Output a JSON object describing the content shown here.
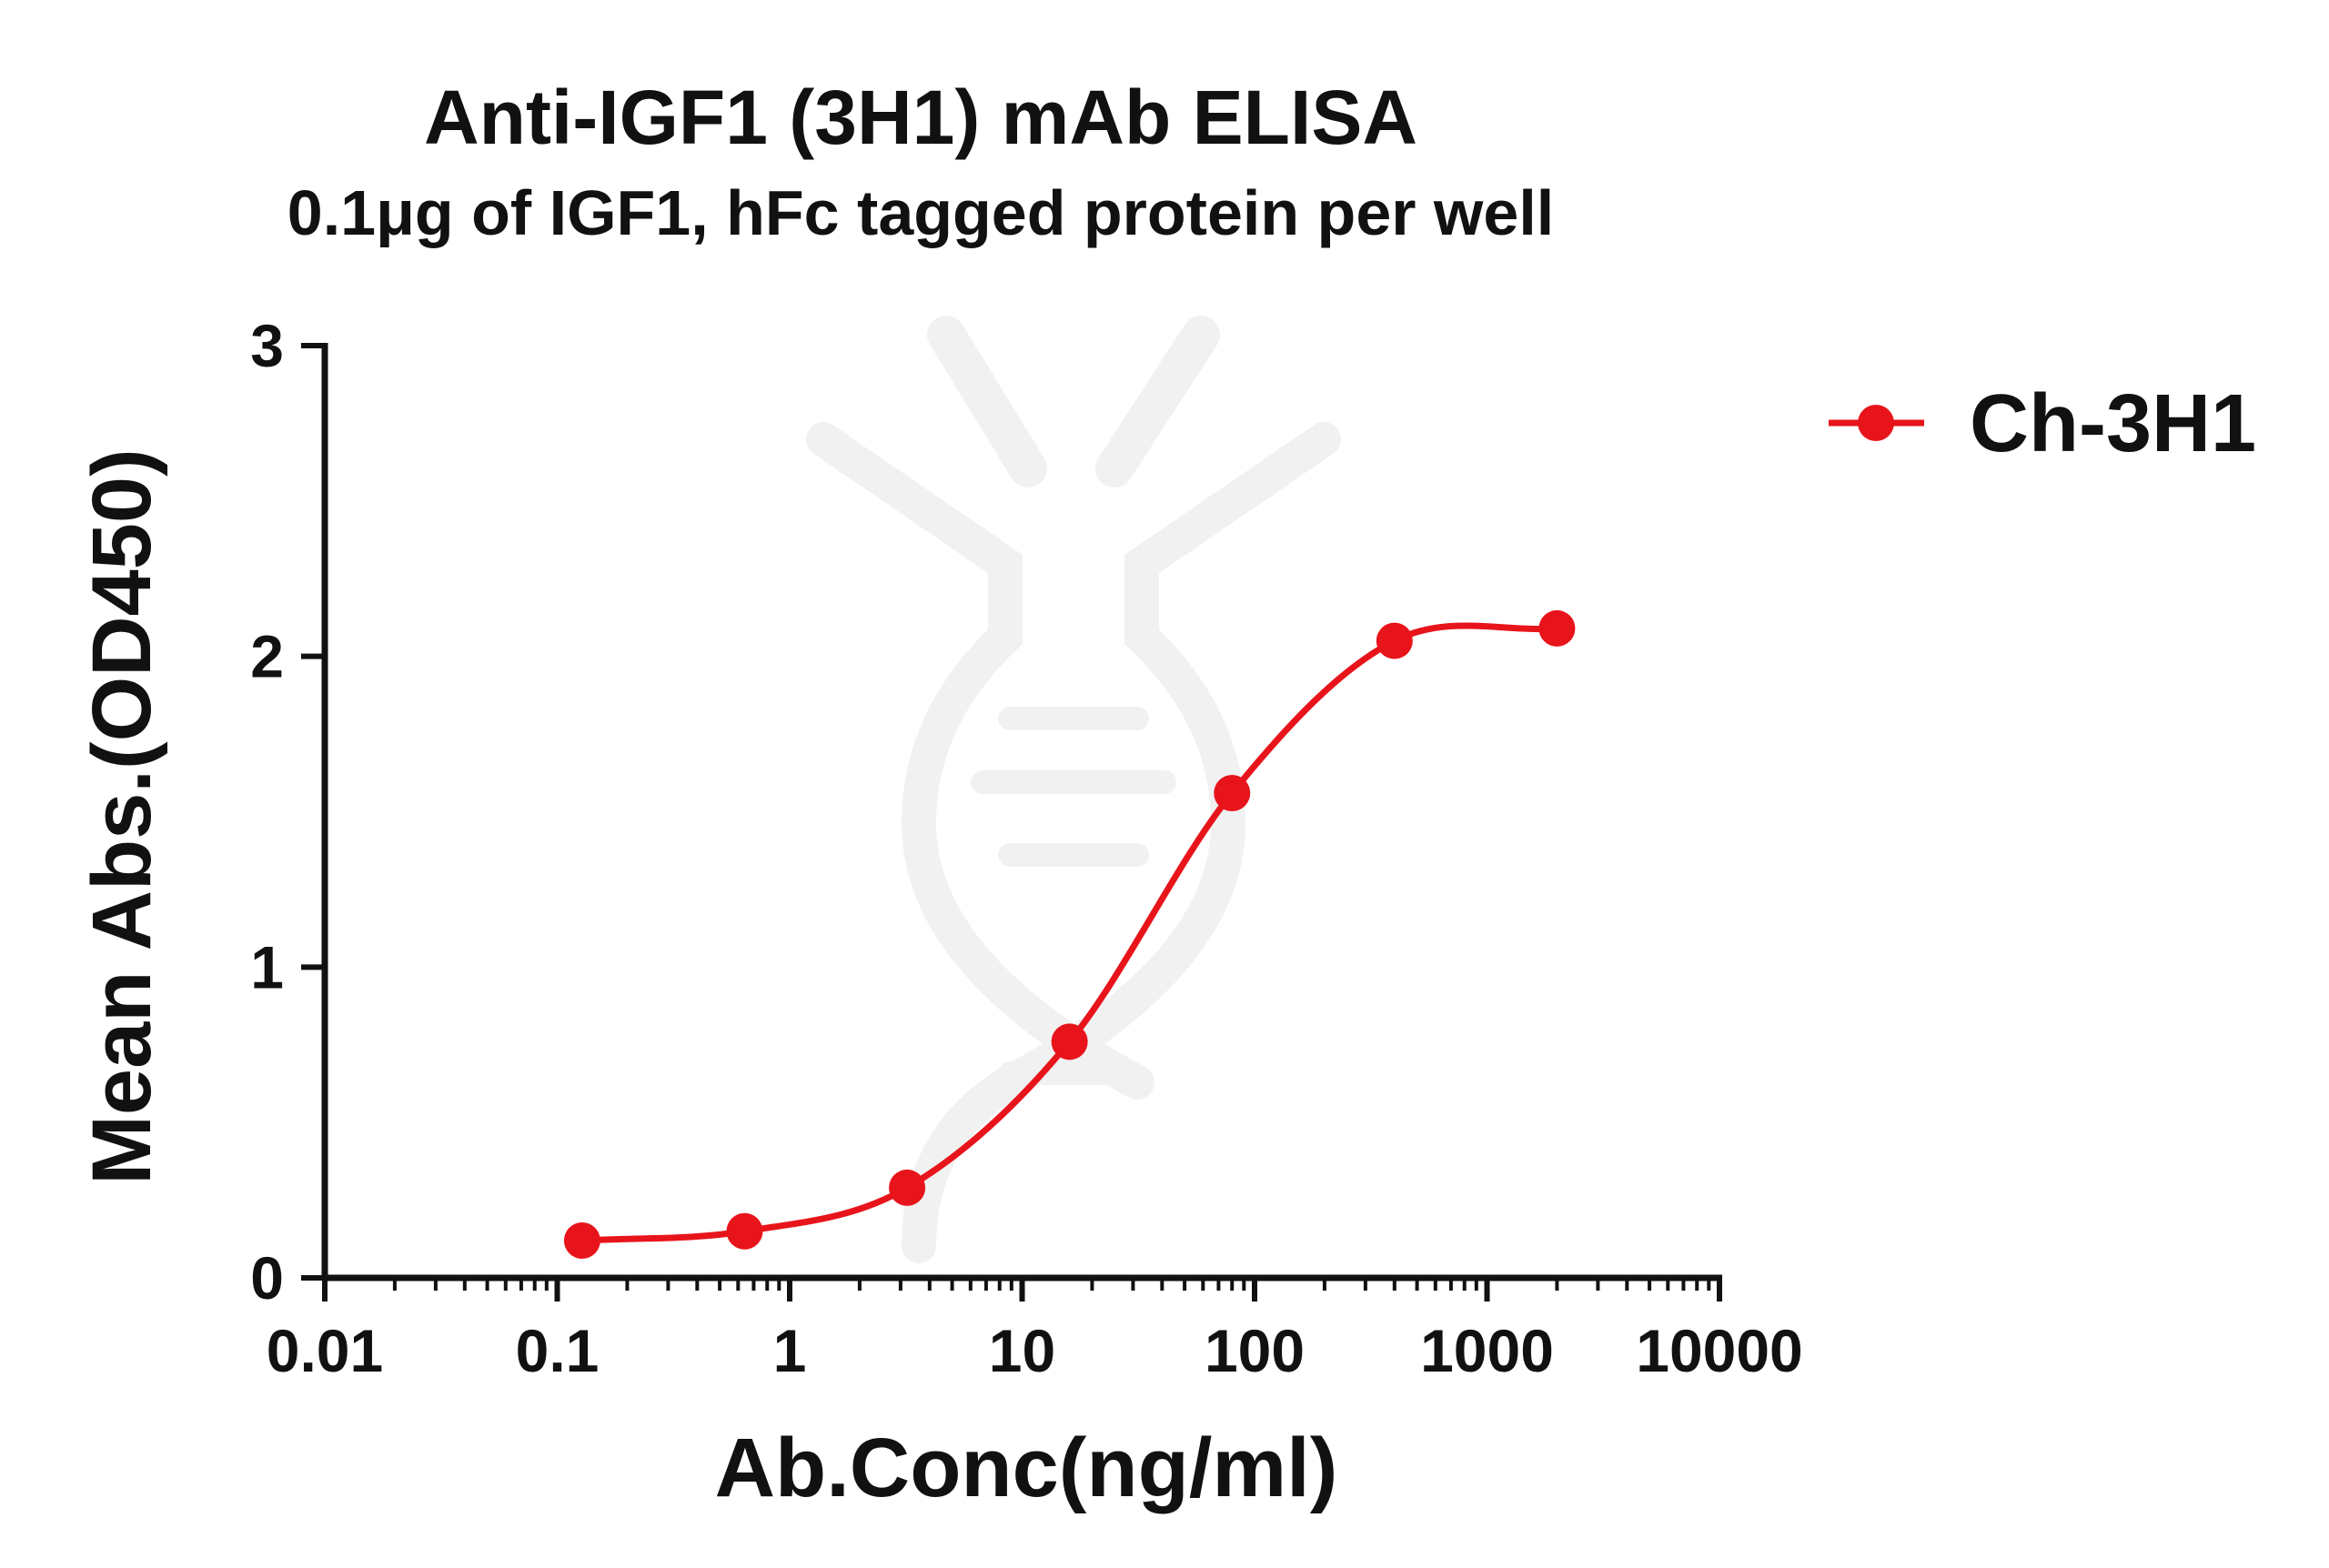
{
  "chart_data": {
    "type": "scatter",
    "title": "Anti-IGF1 (3H1) mAb ELISA",
    "subtitle": "0.1μg of IGF1, hFc tagged protein per well",
    "xlabel": "Ab.Conc(ng/ml)",
    "ylabel": "Mean Abs.(OD450)",
    "x_scale": "log",
    "xlim": [
      0.01,
      10000
    ],
    "ylim": [
      0,
      3
    ],
    "x_ticks": [
      "0.01",
      "0.1",
      "1",
      "10",
      "100",
      "1000",
      "10000"
    ],
    "y_ticks": [
      "0",
      "1",
      "2",
      "3"
    ],
    "grid": false,
    "legend_position": "top-right",
    "colors": {
      "series": "#e8141b",
      "axis": "#111111"
    },
    "series": [
      {
        "name": "Ch-3H1",
        "x": [
          0.128,
          0.64,
          3.2,
          16,
          80,
          400,
          2000
        ],
        "y": [
          0.12,
          0.15,
          0.29,
          0.76,
          1.56,
          2.05,
          2.09
        ],
        "fit": "4PL sigmoid curve"
      }
    ]
  }
}
